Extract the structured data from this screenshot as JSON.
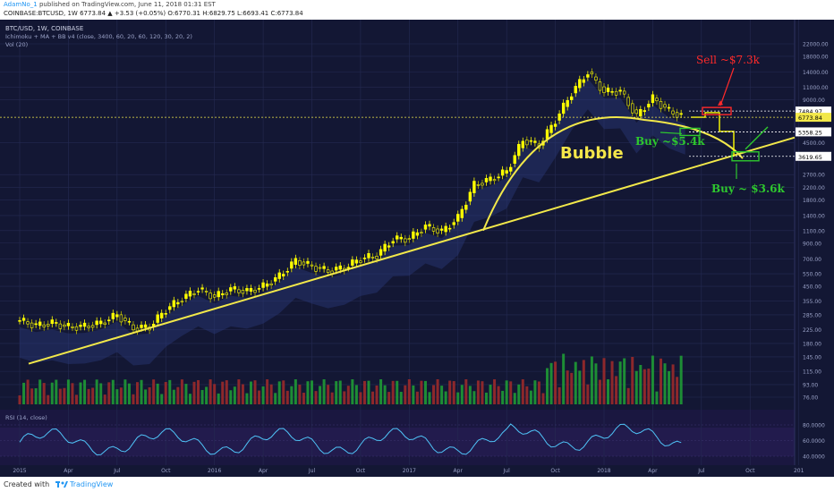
{
  "header": {
    "user": "AdamNo_1",
    "published": "published on TradingView.com, June 11, 2018 01:31 EST",
    "symbol_line": "COINBASE:BTCUSD, 1W 6773.84 ▲ +3.53 (+0.05%) O:6770.31 H:6829.75 L:6693.41 C:6773.84"
  },
  "legend": {
    "symbol": "BTC/USD, 1W, COINBASE",
    "indicator": "Ichimoku + MA + BB v4 (close, 3400, 60, 20, 60, 120, 30, 20, 2)",
    "volume": "Vol (20)",
    "rsi": "RSI (14, close)"
  },
  "annotations": {
    "bubble": "Bubble",
    "sell": "Sell ~$7.3k",
    "buy1": "Buy ~$5.4k",
    "buy2": "Buy ~ $3.6k"
  },
  "footer": {
    "created": "Created with",
    "brand": "TradingView"
  },
  "colors": {
    "background": "#131734",
    "up": "#ffff00",
    "down": "#b8b800",
    "trendline": "#f2e84a",
    "sell": "#ff2a2a",
    "buy": "#2ec82e",
    "rsi": "#4fc3f7",
    "vol_up": "#1f9a35",
    "vol_down": "#9b2a2a"
  },
  "chart_data": {
    "type": "candlestick",
    "title": "BTC/USD, 1W, COINBASE",
    "y_scale": "log",
    "price_axis_ticks": [
      "22000.00",
      "18000.00",
      "14000.00",
      "11000.00",
      "9000.00",
      "7484.97",
      "6773.84",
      "5358.25",
      "4500.00",
      "3619.65",
      "2700.00",
      "2200.00",
      "1800.00",
      "1400.00",
      "1100.00",
      "900.00",
      "700.00",
      "550.00",
      "450.00",
      "355.00",
      "285.00",
      "225.00",
      "180.00",
      "145.00",
      "115.00",
      "93.00",
      "76.00"
    ],
    "rsi_axis_ticks": [
      "80.0000",
      "60.0000",
      "40.0000"
    ],
    "x_ticks": [
      "2015",
      "Apr",
      "Jul",
      "Oct",
      "2016",
      "Apr",
      "Jul",
      "Oct",
      "2017",
      "Apr",
      "Jul",
      "Oct",
      "2018",
      "Apr",
      "Jul",
      "Oct",
      "201"
    ],
    "last_price": 6773.84,
    "levels": [
      {
        "label": "7484.97",
        "value": 7484.97
      },
      {
        "label": "6773.84",
        "value": 6773.84
      },
      {
        "label": "5358.25",
        "value": 5358.25
      },
      {
        "label": "3619.65",
        "value": 3619.65
      }
    ],
    "price_path_monthly": [
      [
        "2015-01",
        260
      ],
      [
        "2015-02",
        240
      ],
      [
        "2015-03",
        250
      ],
      [
        "2015-04",
        235
      ],
      [
        "2015-05",
        237
      ],
      [
        "2015-06",
        250
      ],
      [
        "2015-07",
        285
      ],
      [
        "2015-08",
        230
      ],
      [
        "2015-09",
        235
      ],
      [
        "2015-10",
        310
      ],
      [
        "2015-11",
        370
      ],
      [
        "2015-12",
        430
      ],
      [
        "2016-01",
        380
      ],
      [
        "2016-02",
        430
      ],
      [
        "2016-03",
        415
      ],
      [
        "2016-04",
        450
      ],
      [
        "2016-05",
        530
      ],
      [
        "2016-06",
        680
      ],
      [
        "2016-07",
        620
      ],
      [
        "2016-08",
        575
      ],
      [
        "2016-09",
        608
      ],
      [
        "2016-10",
        700
      ],
      [
        "2016-11",
        740
      ],
      [
        "2016-12",
        960
      ],
      [
        "2017-01",
        970
      ],
      [
        "2017-02",
        1180
      ],
      [
        "2017-03",
        1080
      ],
      [
        "2017-04",
        1350
      ],
      [
        "2017-05",
        2300
      ],
      [
        "2017-06",
        2500
      ],
      [
        "2017-07",
        2850
      ],
      [
        "2017-08",
        4700
      ],
      [
        "2017-09",
        4330
      ],
      [
        "2017-10",
        6450
      ],
      [
        "2017-11",
        10000
      ],
      [
        "2017-12",
        14000
      ],
      [
        "2018-01",
        10200
      ],
      [
        "2018-02",
        10300
      ],
      [
        "2018-03",
        6900
      ],
      [
        "2018-04",
        9200
      ],
      [
        "2018-05",
        7500
      ],
      [
        "2018-06",
        6773.84
      ]
    ],
    "projection": [
      [
        "2018-06",
        6773.84
      ],
      [
        "2018-07",
        7300
      ],
      [
        "2018-08",
        5400
      ],
      [
        "2018-09",
        3600
      ]
    ]
  }
}
